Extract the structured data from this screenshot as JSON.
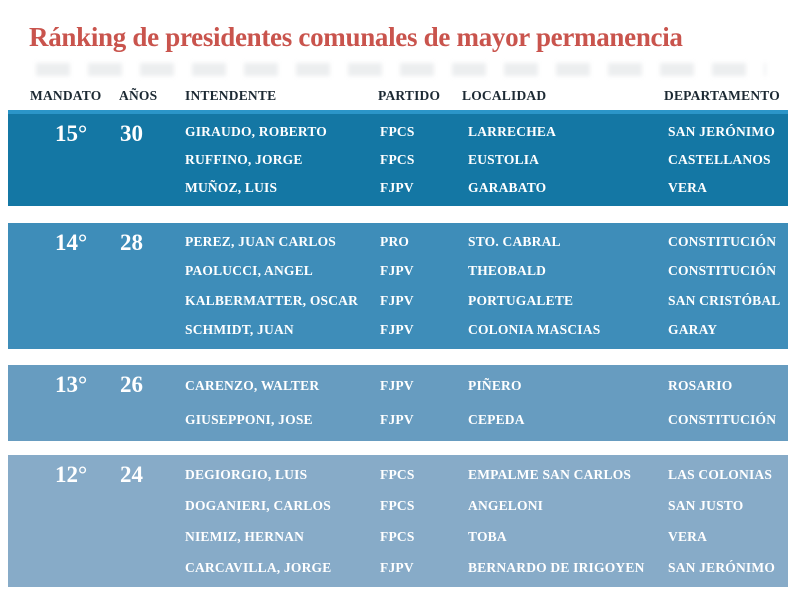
{
  "title": "Ránking de presidentes comunales de mayor permanencia",
  "colors": {
    "title_text": "#c9544d",
    "header_text": "#1c2933",
    "row_text": "#ffffff",
    "group_15_bg": "#1477a4",
    "group_15_top_edge": "#2b95c8",
    "group_14_bg": "#3e8db9",
    "group_13_bg": "#679cc0",
    "group_12_bg": "#87abc8"
  },
  "table": {
    "headers": {
      "mandato": "MANDATO",
      "anos": "AÑOS",
      "intendente": "INTENDENTE",
      "partido": "PARTIDO",
      "localidad": "LOCALIDAD",
      "departamento": "DEPARTAMENTO"
    },
    "groups": [
      {
        "mandato": "15°",
        "anos": "30",
        "rows": [
          {
            "intendente": "GIRAUDO, ROBERTO",
            "partido": "FPCS",
            "localidad": "LARRECHEA",
            "departamento": "SAN JERÓNIMO"
          },
          {
            "intendente": "RUFFINO, JORGE",
            "partido": "FPCS",
            "localidad": "EUSTOLIA",
            "departamento": "CASTELLANOS"
          },
          {
            "intendente": "MUÑOZ, LUIS",
            "partido": "FJPV",
            "localidad": "GARABATO",
            "departamento": "VERA"
          }
        ]
      },
      {
        "mandato": "14°",
        "anos": "28",
        "rows": [
          {
            "intendente": "PEREZ, JUAN CARLOS",
            "partido": "PRO",
            "localidad": "STO. CABRAL",
            "departamento": "CONSTITUCIÓN"
          },
          {
            "intendente": "PAOLUCCI, ANGEL",
            "partido": "FJPV",
            "localidad": "THEOBALD",
            "departamento": "CONSTITUCIÓN"
          },
          {
            "intendente": "KALBERMATTER, OSCAR",
            "partido": "FJPV",
            "localidad": "PORTUGALETE",
            "departamento": "SAN CRISTÓBAL"
          },
          {
            "intendente": "SCHMIDT, JUAN",
            "partido": "FJPV",
            "localidad": "COLONIA MASCIAS",
            "departamento": "GARAY"
          }
        ]
      },
      {
        "mandato": "13°",
        "anos": "26",
        "rows": [
          {
            "intendente": "CARENZO, WALTER",
            "partido": "FJPV",
            "localidad": "PIÑERO",
            "departamento": "ROSARIO"
          },
          {
            "intendente": "GIUSEPPONI, JOSE",
            "partido": "FJPV",
            "localidad": "CEPEDA",
            "departamento": "CONSTITUCIÓN"
          }
        ]
      },
      {
        "mandato": "12°",
        "anos": "24",
        "rows": [
          {
            "intendente": "DEGIORGIO, LUIS",
            "partido": "FPCS",
            "localidad": "EMPALME SAN CARLOS",
            "departamento": "LAS COLONIAS"
          },
          {
            "intendente": "DOGANIERI, CARLOS",
            "partido": "FPCS",
            "localidad": "ANGELONI",
            "departamento": "SAN JUSTO"
          },
          {
            "intendente": "NIEMIZ, HERNAN",
            "partido": "FPCS",
            "localidad": "TOBA",
            "departamento": "VERA"
          },
          {
            "intendente": "CARCAVILLA, JORGE",
            "partido": "FJPV",
            "localidad": "BERNARDO DE IRIGOYEN",
            "departamento": "SAN JERÓNIMO"
          }
        ]
      }
    ]
  },
  "chart_data": {
    "type": "table",
    "title": "Ránking de presidentes comunales de mayor permanencia",
    "columns": [
      "MANDATO",
      "AÑOS",
      "INTENDENTE",
      "PARTIDO",
      "LOCALIDAD",
      "DEPARTAMENTO"
    ],
    "rows": [
      [
        "15°",
        "30",
        "GIRAUDO, ROBERTO",
        "FPCS",
        "LARRECHEA",
        "SAN JERÓNIMO"
      ],
      [
        "15°",
        "30",
        "RUFFINO, JORGE",
        "FPCS",
        "EUSTOLIA",
        "CASTELLANOS"
      ],
      [
        "15°",
        "30",
        "MUÑOZ, LUIS",
        "FJPV",
        "GARABATO",
        "VERA"
      ],
      [
        "14°",
        "28",
        "PEREZ, JUAN CARLOS",
        "PRO",
        "STO. CABRAL",
        "CONSTITUCIÓN"
      ],
      [
        "14°",
        "28",
        "PAOLUCCI, ANGEL",
        "FJPV",
        "THEOBALD",
        "CONSTITUCIÓN"
      ],
      [
        "14°",
        "28",
        "KALBERMATTER, OSCAR",
        "FJPV",
        "PORTUGALETE",
        "SAN CRISTÓBAL"
      ],
      [
        "14°",
        "28",
        "SCHMIDT, JUAN",
        "FJPV",
        "COLONIA MASCIAS",
        "GARAY"
      ],
      [
        "13°",
        "26",
        "CARENZO, WALTER",
        "FJPV",
        "PIÑERO",
        "ROSARIO"
      ],
      [
        "13°",
        "26",
        "GIUSEPPONI, JOSE",
        "FJPV",
        "CEPEDA",
        "CONSTITUCIÓN"
      ],
      [
        "12°",
        "24",
        "DEGIORGIO, LUIS",
        "FPCS",
        "EMPALME SAN CARLOS",
        "LAS COLONIAS"
      ],
      [
        "12°",
        "24",
        "DOGANIERI, CARLOS",
        "FPCS",
        "ANGELONI",
        "SAN JUSTO"
      ],
      [
        "12°",
        "24",
        "NIEMIZ, HERNAN",
        "FPCS",
        "TOBA",
        "VERA"
      ],
      [
        "12°",
        "24",
        "CARCAVILLA, JORGE",
        "FJPV",
        "BERNARDO DE IRIGOYEN",
        "SAN JERÓNIMO"
      ]
    ]
  }
}
